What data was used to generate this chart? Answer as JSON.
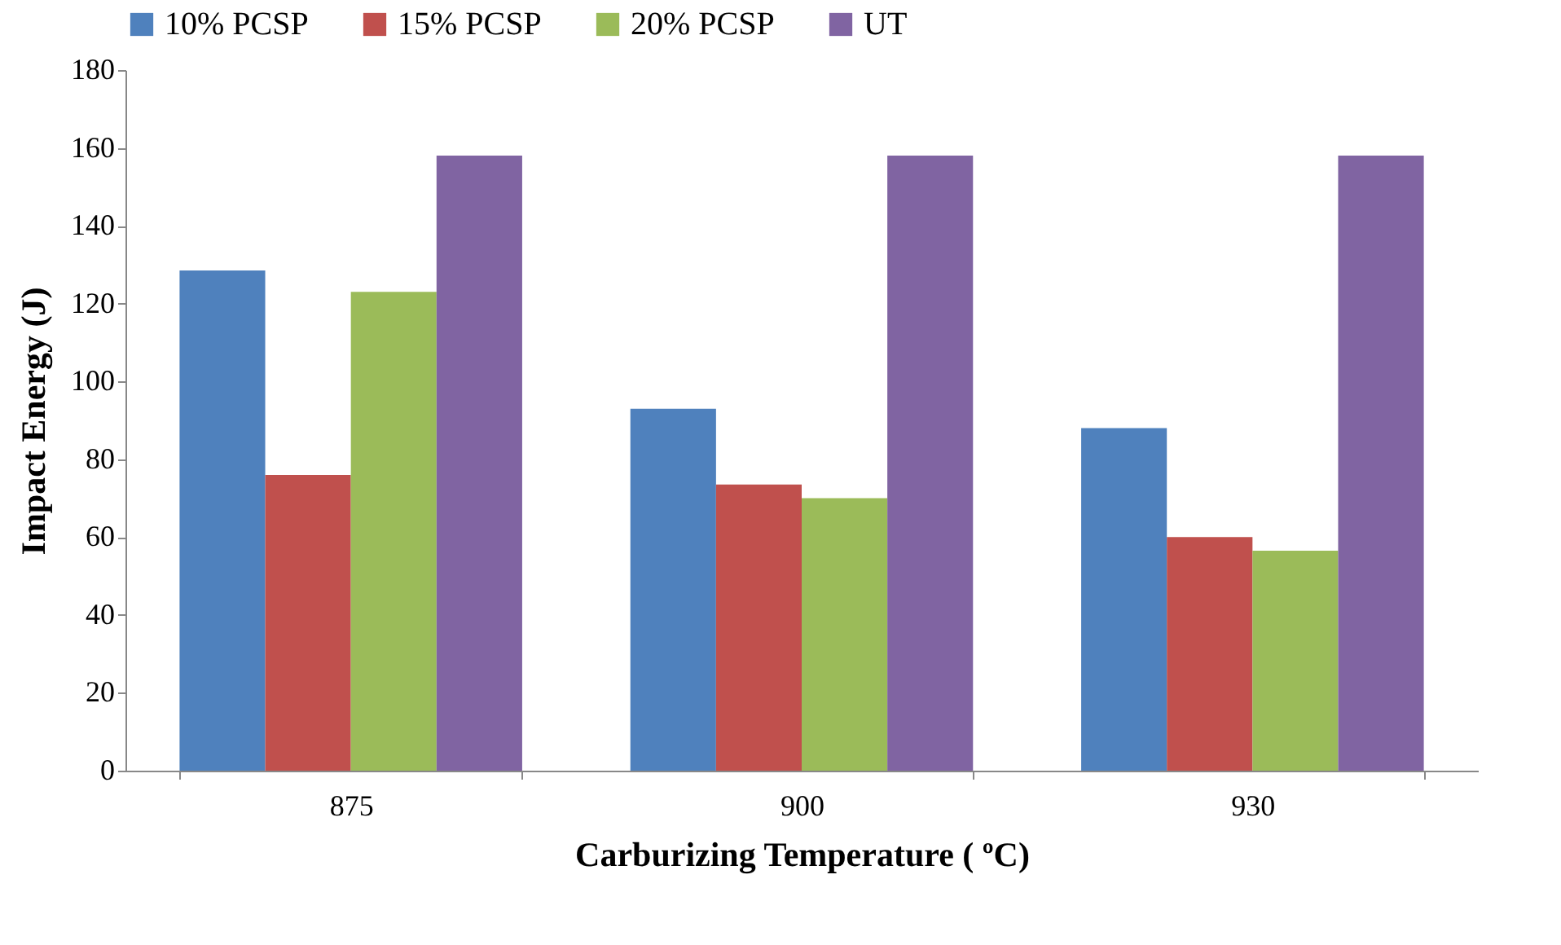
{
  "chart_data": {
    "type": "bar",
    "xlabel": "Carburizing  Temperature ( ºC)",
    "ylabel": "Impact Energy (J)",
    "categories": [
      "875",
      "900",
      "930"
    ],
    "series": [
      {
        "name": "10% PCSP",
        "color": "#4f81bd",
        "values": [
          128.5,
          93,
          88
        ]
      },
      {
        "name": "15% PCSP",
        "color": "#c0504d",
        "values": [
          76,
          73.5,
          60
        ]
      },
      {
        "name": "20% PCSP",
        "color": "#9bbb59",
        "values": [
          123,
          70,
          56.5
        ]
      },
      {
        "name": "UT",
        "color": "#8064a2",
        "values": [
          158,
          158,
          158
        ]
      }
    ],
    "ylim": [
      0,
      180
    ],
    "yticks": [
      0,
      20,
      40,
      60,
      80,
      100,
      120,
      140,
      160,
      180
    ],
    "grid": false,
    "legend": "top"
  }
}
